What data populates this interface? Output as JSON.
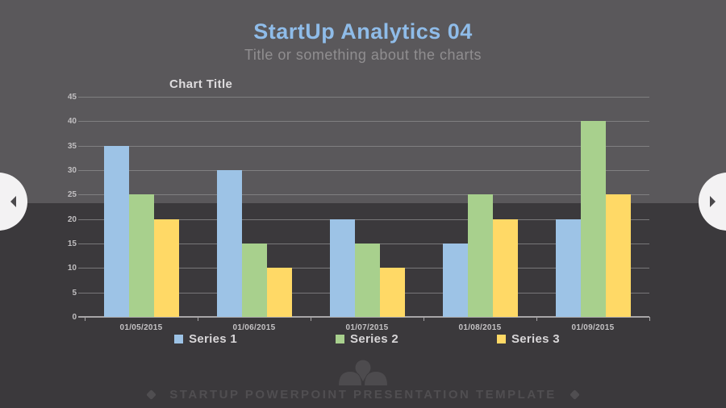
{
  "slide": {
    "title": "StartUp Analytics 04",
    "subtitle": "Title or something about the charts",
    "footer_text": "STARTUP POWERPOINT PRESENTATION TEMPLATE"
  },
  "icons": {
    "prev": "left-arrow",
    "next": "right-arrow",
    "logo": "startup-logo",
    "bullet": "diamond"
  },
  "colors": {
    "bg_top": "#5A585B",
    "bg_bottom": "#3B393C",
    "title_blue": "#8FBCE9",
    "subtitle_gray": "#908E90",
    "gridline": "#8E8C8E",
    "axis_text": "#C0BEC0",
    "legend_text": "#D8D6D8",
    "nav_circle": "#F3F2F3",
    "footer_gray": "#504E51"
  },
  "chart_data": {
    "type": "bar",
    "title": "Chart Title",
    "categories": [
      "01/05/2015",
      "01/06/2015",
      "01/07/2015",
      "01/08/2015",
      "01/09/2015"
    ],
    "series": [
      {
        "name": "Series 1",
        "color": "#9DC3E6",
        "values": [
          35,
          30,
          20,
          15,
          20
        ]
      },
      {
        "name": "Series 2",
        "color": "#A8D08D",
        "values": [
          25,
          15,
          15,
          25,
          40
        ]
      },
      {
        "name": "Series 3",
        "color": "#FFD966",
        "values": [
          20,
          10,
          10,
          20,
          25
        ]
      }
    ],
    "ylim": [
      0,
      45
    ],
    "ytick_step": 5,
    "grid": true,
    "legend_position": "bottom"
  }
}
